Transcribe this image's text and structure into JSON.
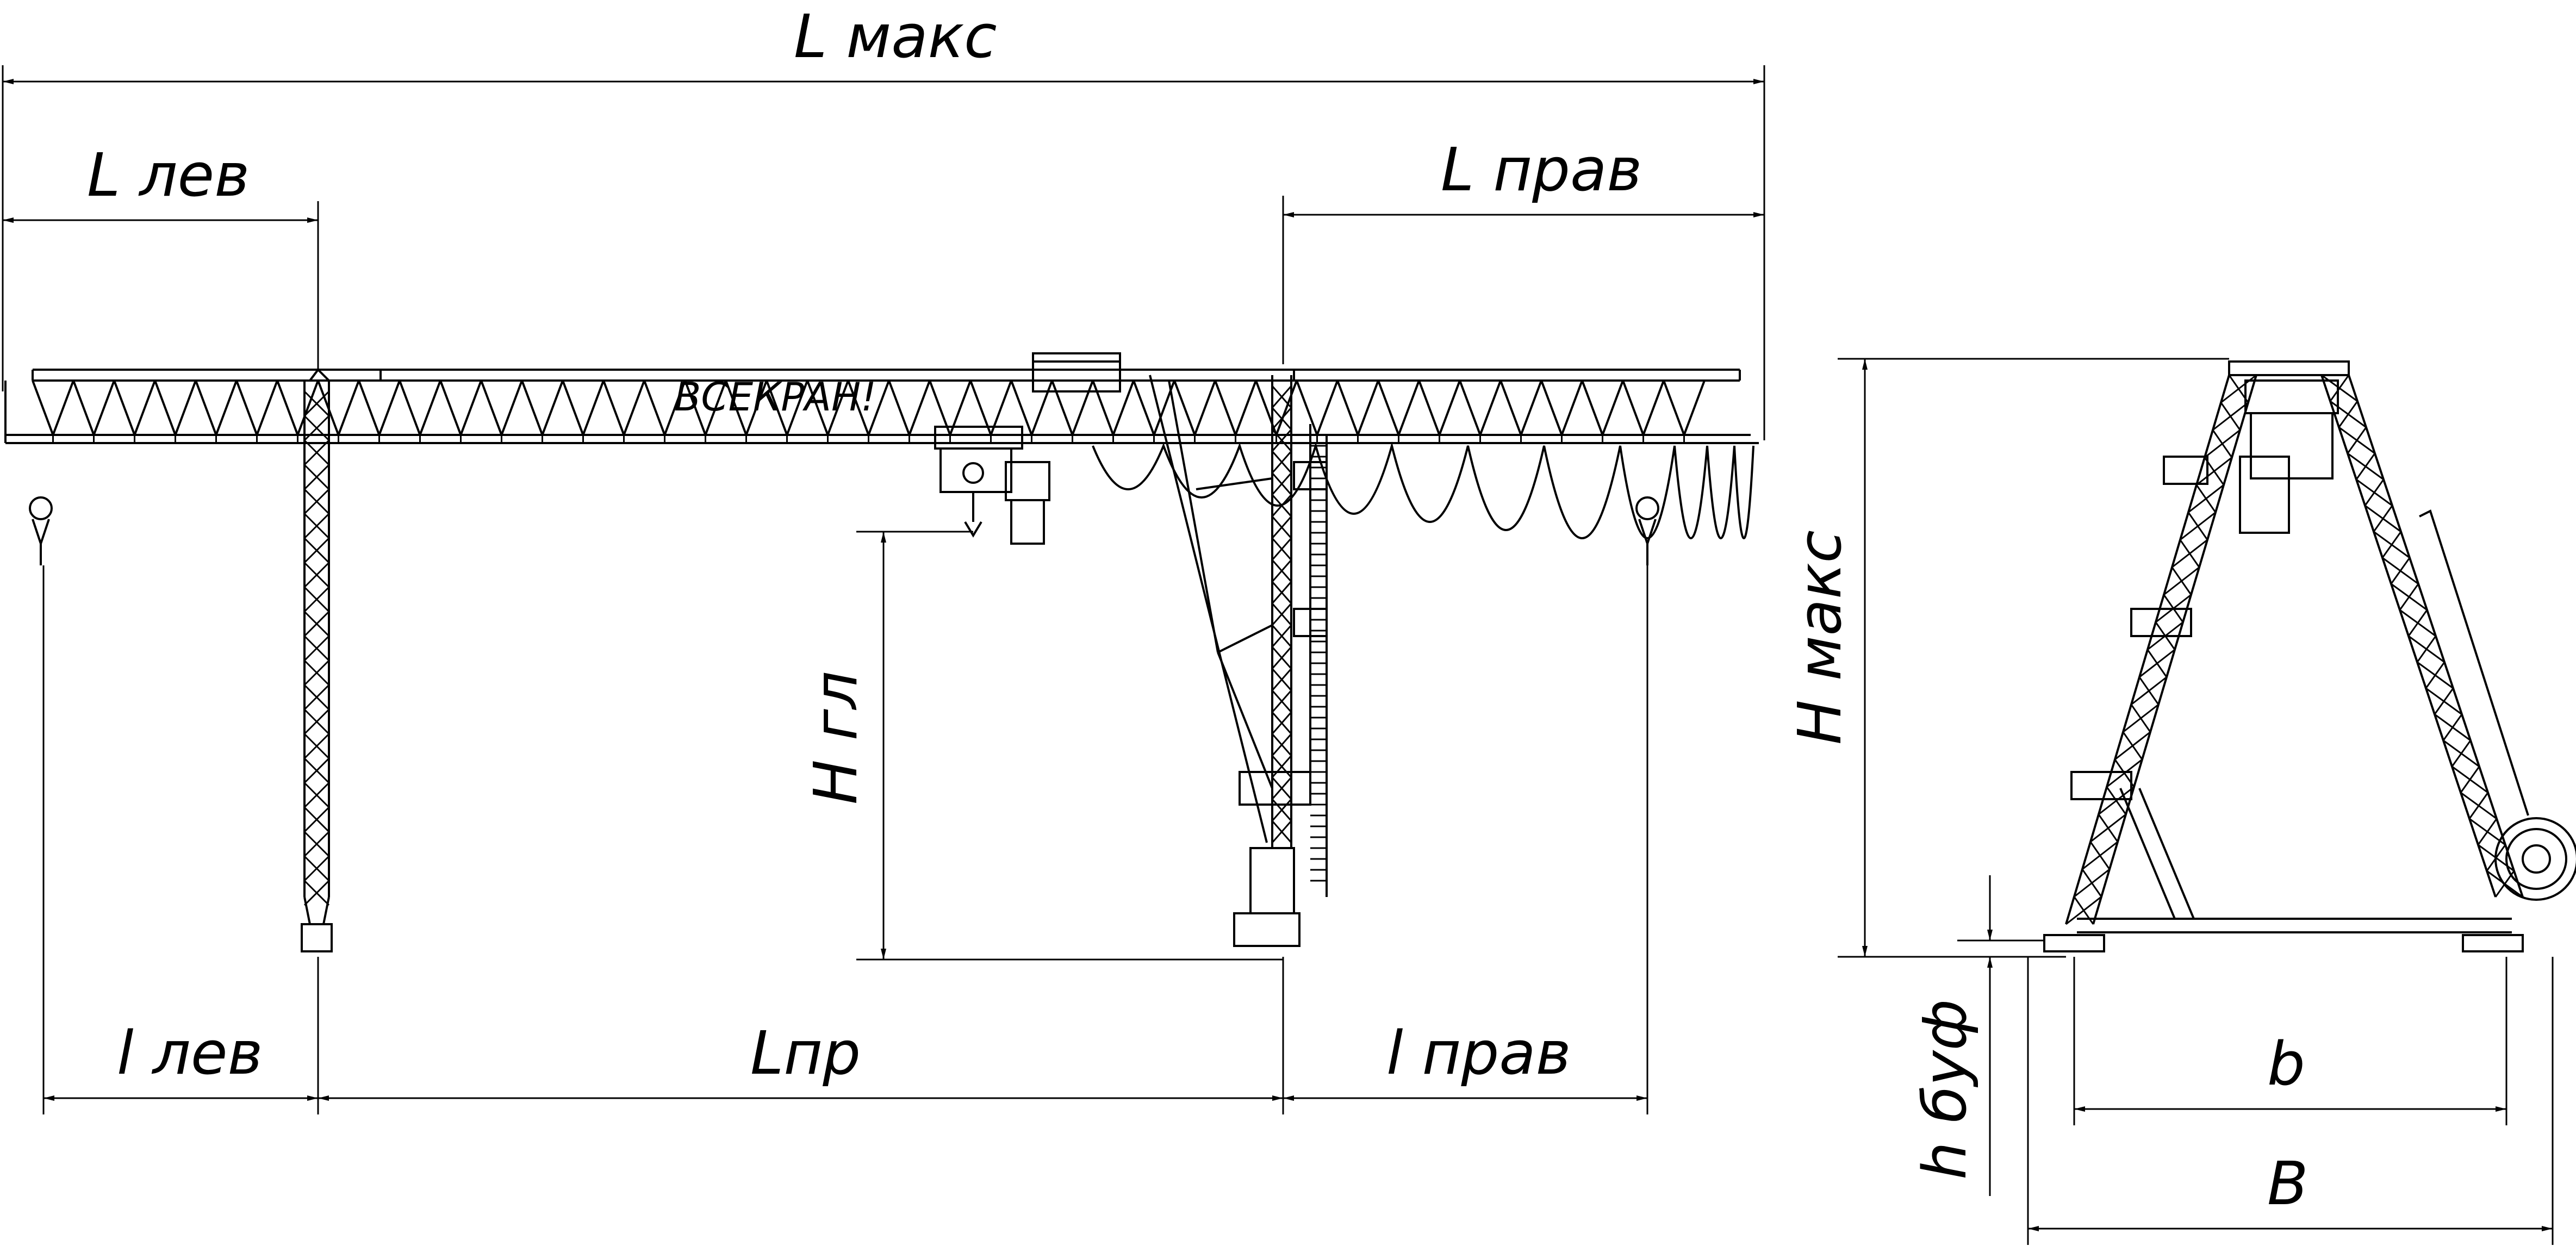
{
  "brand": "ВСЕКРАН!",
  "labels": {
    "l_max": "L макс",
    "l_left": "L лев",
    "l_right": "L прав",
    "h_hook": "H гл",
    "h_max": "H макс",
    "l_left_small": "l лев",
    "l_span": "Lпр",
    "l_right_small": "l прав",
    "h_buf": "h буф",
    "b_small": "b",
    "b_big": "B"
  },
  "colors": {
    "line": "#000000",
    "background": "#ffffff"
  }
}
